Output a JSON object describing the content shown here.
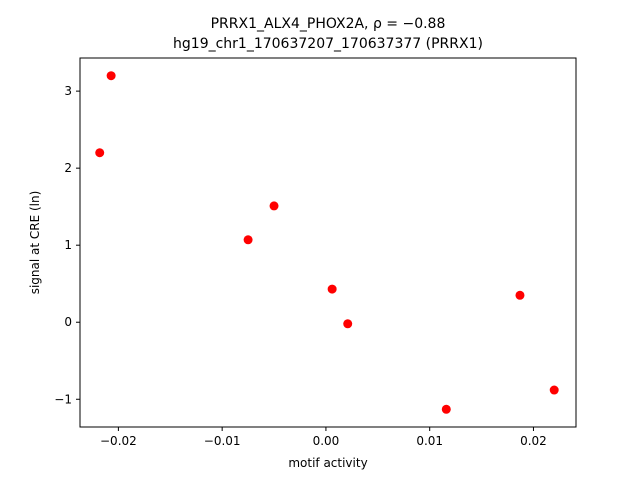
{
  "chart_data": {
    "type": "scatter",
    "title_line1": "PRRX1_ALX4_PHOX2A, ρ = −0.88",
    "title_line2": "hg19_chr1_170637207_170637377 (PRRX1)",
    "xlabel": "motif activity",
    "ylabel": "signal at CRE (ln)",
    "xlim": [
      -0.0237,
      0.0241
    ],
    "ylim": [
      -1.36,
      3.43
    ],
    "x_ticks": [
      {
        "value": -0.02,
        "label": "−0.02"
      },
      {
        "value": -0.01,
        "label": "−0.01"
      },
      {
        "value": 0.0,
        "label": "0.00"
      },
      {
        "value": 0.01,
        "label": "0.01"
      },
      {
        "value": 0.02,
        "label": "0.02"
      }
    ],
    "y_ticks": [
      {
        "value": -1,
        "label": "−1"
      },
      {
        "value": 0,
        "label": "0"
      },
      {
        "value": 1,
        "label": "1"
      },
      {
        "value": 2,
        "label": "2"
      },
      {
        "value": 3,
        "label": "3"
      }
    ],
    "grid": false,
    "legend": "none",
    "marker_color": "#ff0000",
    "points": [
      {
        "x": -0.0207,
        "y": 3.2
      },
      {
        "x": -0.0218,
        "y": 2.2
      },
      {
        "x": -0.005,
        "y": 1.51
      },
      {
        "x": -0.0075,
        "y": 1.07
      },
      {
        "x": 0.0006,
        "y": 0.43
      },
      {
        "x": 0.0021,
        "y": -0.02
      },
      {
        "x": 0.0187,
        "y": 0.35
      },
      {
        "x": 0.022,
        "y": -0.88
      },
      {
        "x": 0.0116,
        "y": -1.13
      }
    ]
  }
}
